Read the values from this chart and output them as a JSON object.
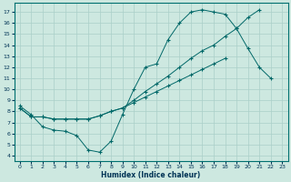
{
  "xlabel": "Humidex (Indice chaleur)",
  "bg_color": "#cde8e0",
  "grid_color": "#aacfc8",
  "line_color": "#006868",
  "xlim": [
    -0.5,
    23.5
  ],
  "ylim": [
    3.5,
    17.8
  ],
  "xticks": [
    0,
    1,
    2,
    3,
    4,
    5,
    6,
    7,
    8,
    9,
    10,
    11,
    12,
    13,
    14,
    15,
    16,
    17,
    18,
    19,
    20,
    21,
    22,
    23
  ],
  "yticks": [
    4,
    5,
    6,
    7,
    8,
    9,
    10,
    11,
    12,
    13,
    14,
    15,
    16,
    17
  ],
  "curve1_x": [
    0,
    1,
    2,
    3,
    4,
    5,
    6,
    7,
    8,
    9,
    10,
    11,
    12,
    13,
    14,
    15,
    16,
    17,
    18,
    19,
    20,
    21,
    22
  ],
  "curve1_y": [
    8.5,
    7.7,
    6.6,
    6.3,
    6.2,
    5.8,
    4.5,
    4.3,
    5.3,
    7.7,
    10.0,
    12.0,
    12.3,
    14.5,
    16.0,
    17.0,
    17.2,
    17.0,
    16.8,
    15.5,
    13.7,
    12.0,
    11.0
  ],
  "curve2_x": [
    0,
    1,
    2,
    3,
    4,
    5,
    6,
    7,
    8,
    9,
    10,
    11,
    12,
    13,
    14,
    15,
    16,
    17,
    18,
    19,
    20,
    21,
    22,
    23
  ],
  "curve2_y": [
    8.3,
    7.5,
    7.5,
    7.3,
    7.3,
    7.3,
    7.3,
    7.6,
    8.0,
    8.3,
    9.0,
    9.8,
    10.5,
    11.2,
    12.0,
    12.8,
    13.5,
    14.0,
    14.8,
    15.5,
    16.5,
    17.2,
    null,
    null
  ],
  "curve3_x": [
    0,
    1,
    2,
    3,
    4,
    5,
    6,
    7,
    8,
    9,
    10,
    11,
    12,
    13,
    14,
    15,
    16,
    17,
    18,
    19,
    20,
    21,
    22,
    23
  ],
  "curve3_y": [
    8.3,
    7.5,
    7.5,
    7.3,
    7.3,
    7.3,
    7.3,
    7.6,
    8.0,
    8.3,
    8.8,
    9.3,
    9.8,
    10.3,
    10.8,
    11.3,
    11.8,
    12.3,
    12.8,
    null,
    null,
    null,
    null,
    null
  ]
}
